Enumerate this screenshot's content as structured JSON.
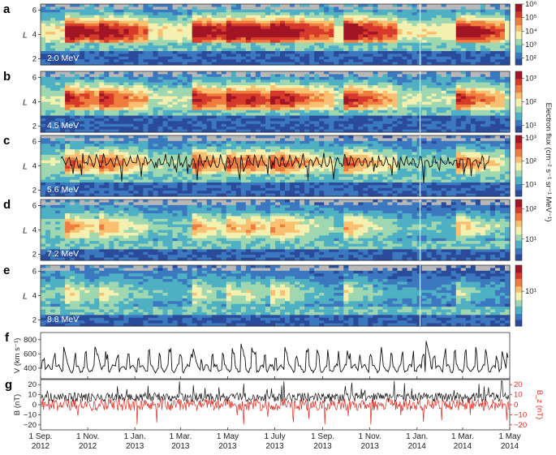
{
  "chart_data": {
    "type": "heatmap",
    "ylabel_spectrogram": "L",
    "l_range": [
      1.5,
      6.5
    ],
    "l_ticks": [
      "2",
      "4",
      "6"
    ],
    "colorbar_label": "Electron flux (cm⁻² s⁻¹ sr⁻¹ MeV⁻¹)",
    "time_range": [
      "2012-09-01",
      "2014-05-01"
    ],
    "panels": [
      {
        "id": "a",
        "energy": "2.0 MeV",
        "colorbar_ticks": [
          "10⁶",
          "10⁵",
          "10⁴",
          "10³",
          "10²"
        ],
        "log_flux_range": [
          1.5,
          6
        ],
        "inner_edge_L": 3.3
      },
      {
        "id": "b",
        "energy": "4.5 MeV",
        "colorbar_ticks": [
          "10³",
          "10²",
          "10¹"
        ],
        "log_flux_range": [
          0.7,
          3.3
        ],
        "inner_edge_L": 3.4
      },
      {
        "id": "c",
        "energy": "5.6 MeV",
        "colorbar_ticks": [
          "10³",
          "10²",
          "10¹"
        ],
        "log_flux_range": [
          0.5,
          3.1
        ],
        "inner_edge_L": 3.3
      },
      {
        "id": "d",
        "energy": "7.2 MeV",
        "colorbar_ticks": [
          "10²",
          "10¹"
        ],
        "log_flux_range": [
          0.3,
          2.3
        ],
        "inner_edge_L": 3.1
      },
      {
        "id": "e",
        "energy": "8.8 MeV",
        "colorbar_ticks": [
          "10¹"
        ],
        "log_flux_range": [
          0.2,
          1.6
        ],
        "inner_edge_L": 3.0
      }
    ],
    "solar_wind_speed": {
      "id": "f",
      "ylabel": "V (km s⁻¹)",
      "yticks": [
        "400",
        "600",
        "800"
      ],
      "ylim": [
        250,
        900
      ],
      "peaks": [
        {
          "date": "2012-10-01",
          "v": 700
        },
        {
          "date": "2012-11-14",
          "v": 600
        },
        {
          "date": "2013-03-17",
          "v": 700
        },
        {
          "date": "2013-05-18",
          "v": 760
        },
        {
          "date": "2013-06-01",
          "v": 700
        },
        {
          "date": "2013-07-14",
          "v": 700
        },
        {
          "date": "2013-10-02",
          "v": 680
        },
        {
          "date": "2014-01-12",
          "v": 820
        },
        {
          "date": "2014-04-20",
          "v": 690
        }
      ],
      "baseline": [
        330,
        420
      ]
    },
    "magnetic_field": {
      "id": "g",
      "ylabel": "B (nT)",
      "ylabel_right": "B_z (nT)",
      "yticks": [
        "−20",
        "−10",
        "0",
        "10",
        "20"
      ],
      "ylim": [
        -25,
        25
      ],
      "B_typical": [
        3,
        12
      ],
      "B_max": 25,
      "Bz_typical": [
        -6,
        6
      ],
      "Bz_min": -20
    },
    "x_ticks": [
      {
        "l1": "1 Sep.",
        "l2": "2012",
        "date": "2012-09-01"
      },
      {
        "l1": "1 Nov.",
        "l2": "2012",
        "date": "2012-11-01"
      },
      {
        "l1": "1 Jan.",
        "l2": "2013",
        "date": "2013-01-01"
      },
      {
        "l1": "1 Mar.",
        "l2": "2013",
        "date": "2013-03-01"
      },
      {
        "l1": "1 May",
        "l2": "2013",
        "date": "2013-05-01"
      },
      {
        "l1": "1 July",
        "l2": "2013",
        "date": "2013-07-01"
      },
      {
        "l1": "1 Sep.",
        "l2": "2013",
        "date": "2013-09-01"
      },
      {
        "l1": "1 Nov.",
        "l2": "2013",
        "date": "2013-11-01"
      },
      {
        "l1": "1 Jan.",
        "l2": "2014",
        "date": "2014-01-01"
      },
      {
        "l1": "1 Mar.",
        "l2": "2014",
        "date": "2014-03-01"
      },
      {
        "l1": "1 May",
        "l2": "2014",
        "date": "2014-05-01"
      }
    ],
    "injection_events": [
      "2012-10-01",
      "2012-11-14",
      "2013-03-17",
      "2013-05-01",
      "2013-05-25",
      "2013-06-29",
      "2013-07-10",
      "2013-10-02",
      "2014-02-20"
    ],
    "colormap": [
      "#2a4a9a",
      "#3b78c0",
      "#4fb0c4",
      "#9fd8b0",
      "#f3f0b0",
      "#f8c070",
      "#ef7d3e",
      "#d63a2a",
      "#a11525"
    ]
  }
}
